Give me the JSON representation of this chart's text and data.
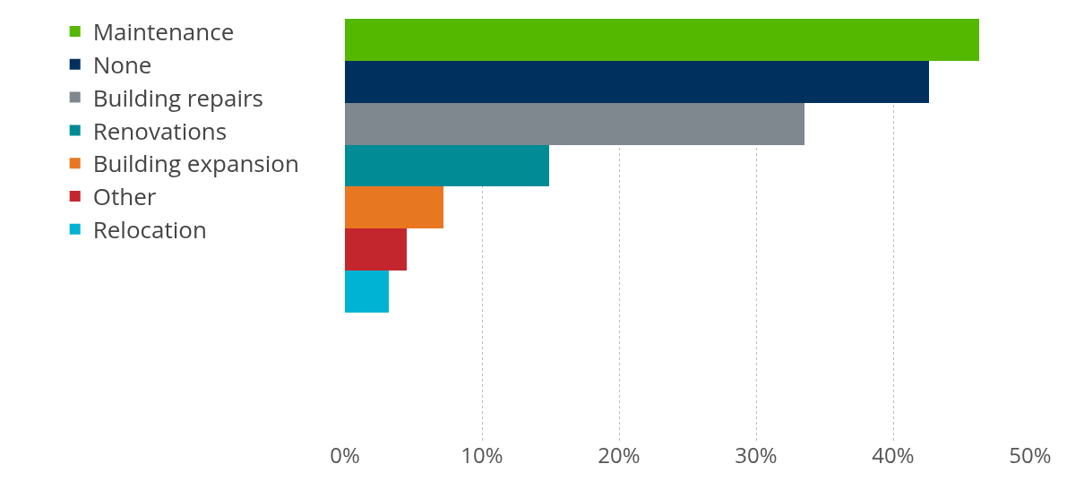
{
  "chart_data": {
    "type": "bar",
    "orientation": "horizontal",
    "stacked": true,
    "categories": [
      null,
      null,
      null,
      null,
      null,
      null,
      null
    ],
    "series": [
      {
        "name": "Maintenance",
        "color": "#55b800",
        "values": [
          46.3,
          null,
          null,
          null,
          null,
          null,
          null
        ]
      },
      {
        "name": "None",
        "color": "#00305e",
        "values": [
          null,
          42.6,
          null,
          null,
          null,
          null,
          null
        ]
      },
      {
        "name": "Building repairs",
        "color": "#7f878f",
        "values": [
          null,
          null,
          33.5,
          null,
          null,
          null,
          null
        ]
      },
      {
        "name": "Renovations",
        "color": "#008b95",
        "values": [
          null,
          null,
          null,
          14.9,
          null,
          null,
          null
        ]
      },
      {
        "name": "Building expansion",
        "color": "#e87722",
        "values": [
          null,
          null,
          null,
          null,
          7.2,
          null,
          null
        ]
      },
      {
        "name": "Other",
        "color": "#c4262e",
        "values": [
          null,
          null,
          null,
          null,
          null,
          4.5,
          null
        ]
      },
      {
        "name": "Relocation",
        "color": "#00b2d3",
        "values": [
          null,
          null,
          null,
          null,
          null,
          null,
          3.2
        ]
      }
    ],
    "xlim": [
      0,
      50
    ],
    "xticks": [
      {
        "value": 0,
        "label": "0%"
      },
      {
        "value": 10,
        "label": "10%"
      },
      {
        "value": 20,
        "label": "20%"
      },
      {
        "value": 30,
        "label": "30%"
      },
      {
        "value": 40,
        "label": "40%"
      },
      {
        "value": 50,
        "label": "50%"
      }
    ],
    "grid": "x",
    "legend": "left"
  }
}
